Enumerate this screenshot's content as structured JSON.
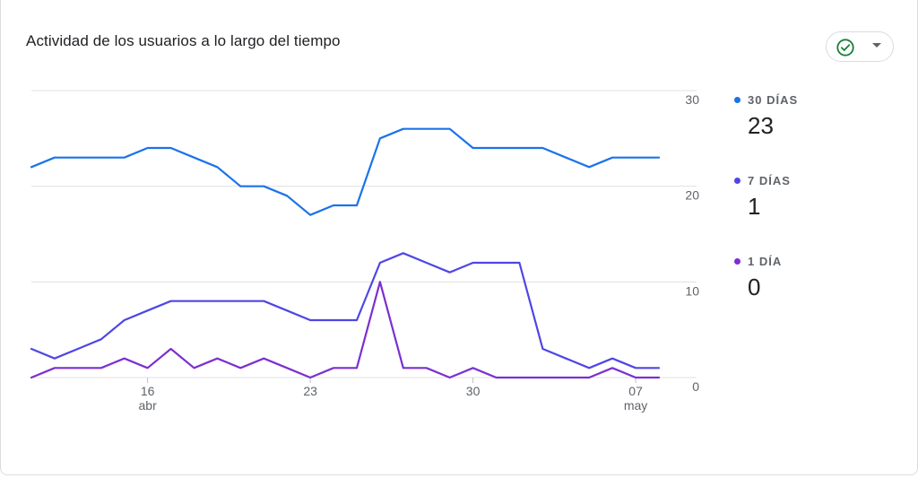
{
  "card": {
    "title": "Actividad de los usuarios a lo largo del tiempo",
    "status_icon": "check-circle-icon",
    "status_color": "#188038",
    "dropdown_icon": "caret-down-icon"
  },
  "legend": [
    {
      "label": "30 DÍAS",
      "value": "23",
      "color": "#1a73e8"
    },
    {
      "label": "7 DÍAS",
      "value": "1",
      "color": "#4f46e5"
    },
    {
      "label": "1 DÍA",
      "value": "0",
      "color": "#7b2fd1"
    }
  ],
  "chart_data": {
    "type": "line",
    "ylim": [
      0,
      30
    ],
    "y_ticks": [
      "30",
      "20",
      "10",
      "0"
    ],
    "x_ticks": [
      {
        "index": 5,
        "label": "16",
        "sublabel": "abr"
      },
      {
        "index": 12,
        "label": "23",
        "sublabel": ""
      },
      {
        "index": 19,
        "label": "30",
        "sublabel": ""
      },
      {
        "index": 26,
        "label": "07",
        "sublabel": "may"
      }
    ],
    "x_count": 28,
    "grid": true,
    "series": [
      {
        "name": "30 DÍAS",
        "color": "#1a73e8",
        "values": [
          22,
          23,
          23,
          23,
          23,
          24,
          24,
          23,
          22,
          20,
          20,
          19,
          17,
          18,
          18,
          25,
          26,
          26,
          26,
          24,
          24,
          24,
          24,
          23,
          22,
          23,
          23,
          23
        ]
      },
      {
        "name": "7 DÍAS",
        "color": "#4f46e5",
        "values": [
          3,
          2,
          3,
          4,
          6,
          7,
          8,
          8,
          8,
          8,
          8,
          7,
          6,
          6,
          6,
          12,
          13,
          12,
          11,
          12,
          12,
          12,
          3,
          2,
          1,
          2,
          1,
          1
        ]
      },
      {
        "name": "1 DÍA",
        "color": "#7b2fd1",
        "values": [
          0,
          1,
          1,
          1,
          2,
          1,
          3,
          1,
          2,
          1,
          2,
          1,
          0,
          1,
          1,
          10,
          1,
          1,
          0,
          1,
          0,
          0,
          0,
          0,
          0,
          1,
          0,
          0
        ]
      }
    ]
  }
}
